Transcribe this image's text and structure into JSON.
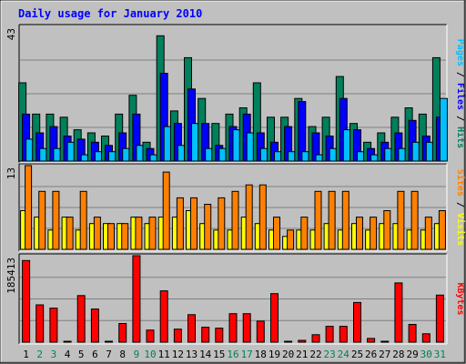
{
  "chart_data": {
    "type": "bar",
    "title": "Daily usage for January 2010",
    "categories": [
      "1",
      "2",
      "3",
      "4",
      "5",
      "6",
      "7",
      "8",
      "9",
      "10",
      "11",
      "12",
      "13",
      "14",
      "15",
      "16",
      "17",
      "18",
      "19",
      "20",
      "21",
      "22",
      "23",
      "24",
      "25",
      "26",
      "27",
      "28",
      "29",
      "30",
      "31"
    ],
    "weekend_days": [
      "2",
      "3",
      "9",
      "10",
      "16",
      "17",
      "23",
      "24",
      "30",
      "31"
    ],
    "panels": [
      {
        "id": "hits",
        "ymax": 43,
        "ymax_label": "43",
        "grid": true,
        "series": [
          {
            "name": "Hits",
            "color": "#00805c",
            "values": [
              25,
              15,
              15,
              14,
              10,
              9,
              8,
              15,
              21,
              6,
              40,
              16,
              33,
              20,
              12,
              15,
              17,
              25,
              14,
              14,
              20,
              11,
              14,
              27,
              12,
              6,
              9,
              14,
              17,
              15,
              33
            ]
          },
          {
            "name": "Files",
            "color": "#0000ff",
            "values": [
              15,
              9,
              11,
              8,
              7,
              6,
              5,
              9,
              15,
              4,
              28,
              12,
              23,
              12,
              5,
              11,
              15,
              9,
              6,
              11,
              19,
              9,
              8,
              20,
              10,
              4,
              6,
              9,
              13,
              8,
              14
            ]
          },
          {
            "name": "Pages",
            "color": "#00c0ff",
            "values": [
              7,
              4,
              4,
              6,
              2,
              3,
              3,
              4,
              5,
              2,
              11,
              5,
              12,
              4,
              4,
              10,
              9,
              4,
              3,
              3,
              3,
              2,
              4,
              10,
              3,
              2,
              4,
              4,
              6,
              6,
              20
            ]
          }
        ],
        "axis_label": [
          {
            "text": "Pages",
            "color": "#00c0ff"
          },
          {
            "text": " / ",
            "color": "#000000"
          },
          {
            "text": "Files",
            "color": "#0000ff"
          },
          {
            "text": " / ",
            "color": "#000000"
          },
          {
            "text": "Hits",
            "color": "#00805c"
          }
        ]
      },
      {
        "id": "visits",
        "ymax": 13,
        "ymax_label": "13",
        "grid": true,
        "series": [
          {
            "name": "Visits",
            "color": "#ffff00",
            "values": [
              6,
              5,
              3,
              5,
              3,
              4,
              4,
              4,
              5,
              4,
              5,
              5,
              6,
              4,
              3,
              3,
              5,
              4,
              3,
              2,
              3,
              3,
              4,
              3,
              4,
              3,
              4,
              4,
              3,
              3,
              4
            ]
          },
          {
            "name": "Sites",
            "color": "#ff8000",
            "values": [
              13,
              9,
              9,
              5,
              9,
              5,
              4,
              4,
              5,
              5,
              12,
              8,
              8,
              7,
              8,
              9,
              10,
              10,
              5,
              3,
              5,
              9,
              9,
              9,
              5,
              5,
              6,
              9,
              9,
              5,
              6
            ]
          }
        ],
        "axis_label": [
          {
            "text": "Sites",
            "color": "#ff8000"
          },
          {
            "text": " / ",
            "color": "#000000"
          },
          {
            "text": "Visits",
            "color": "#ffff00"
          }
        ]
      },
      {
        "id": "kbytes",
        "ymax": 185413,
        "ymax_label": "185413",
        "grid": true,
        "series": [
          {
            "name": "KBytes",
            "color": "#ff0000",
            "values": [
              175000,
              80000,
              73000,
              500,
              100000,
              71000,
              500,
              40000,
              185413,
              26000,
              110000,
              28000,
              59000,
              32000,
              30000,
              61000,
              61000,
              45000,
              104000,
              500,
              4000,
              16000,
              34000,
              34000,
              85000,
              8000,
              500,
              127000,
              38000,
              18000,
              101000
            ]
          }
        ],
        "axis_label": [
          {
            "text": "KBytes",
            "color": "#ff0000"
          }
        ]
      }
    ]
  }
}
